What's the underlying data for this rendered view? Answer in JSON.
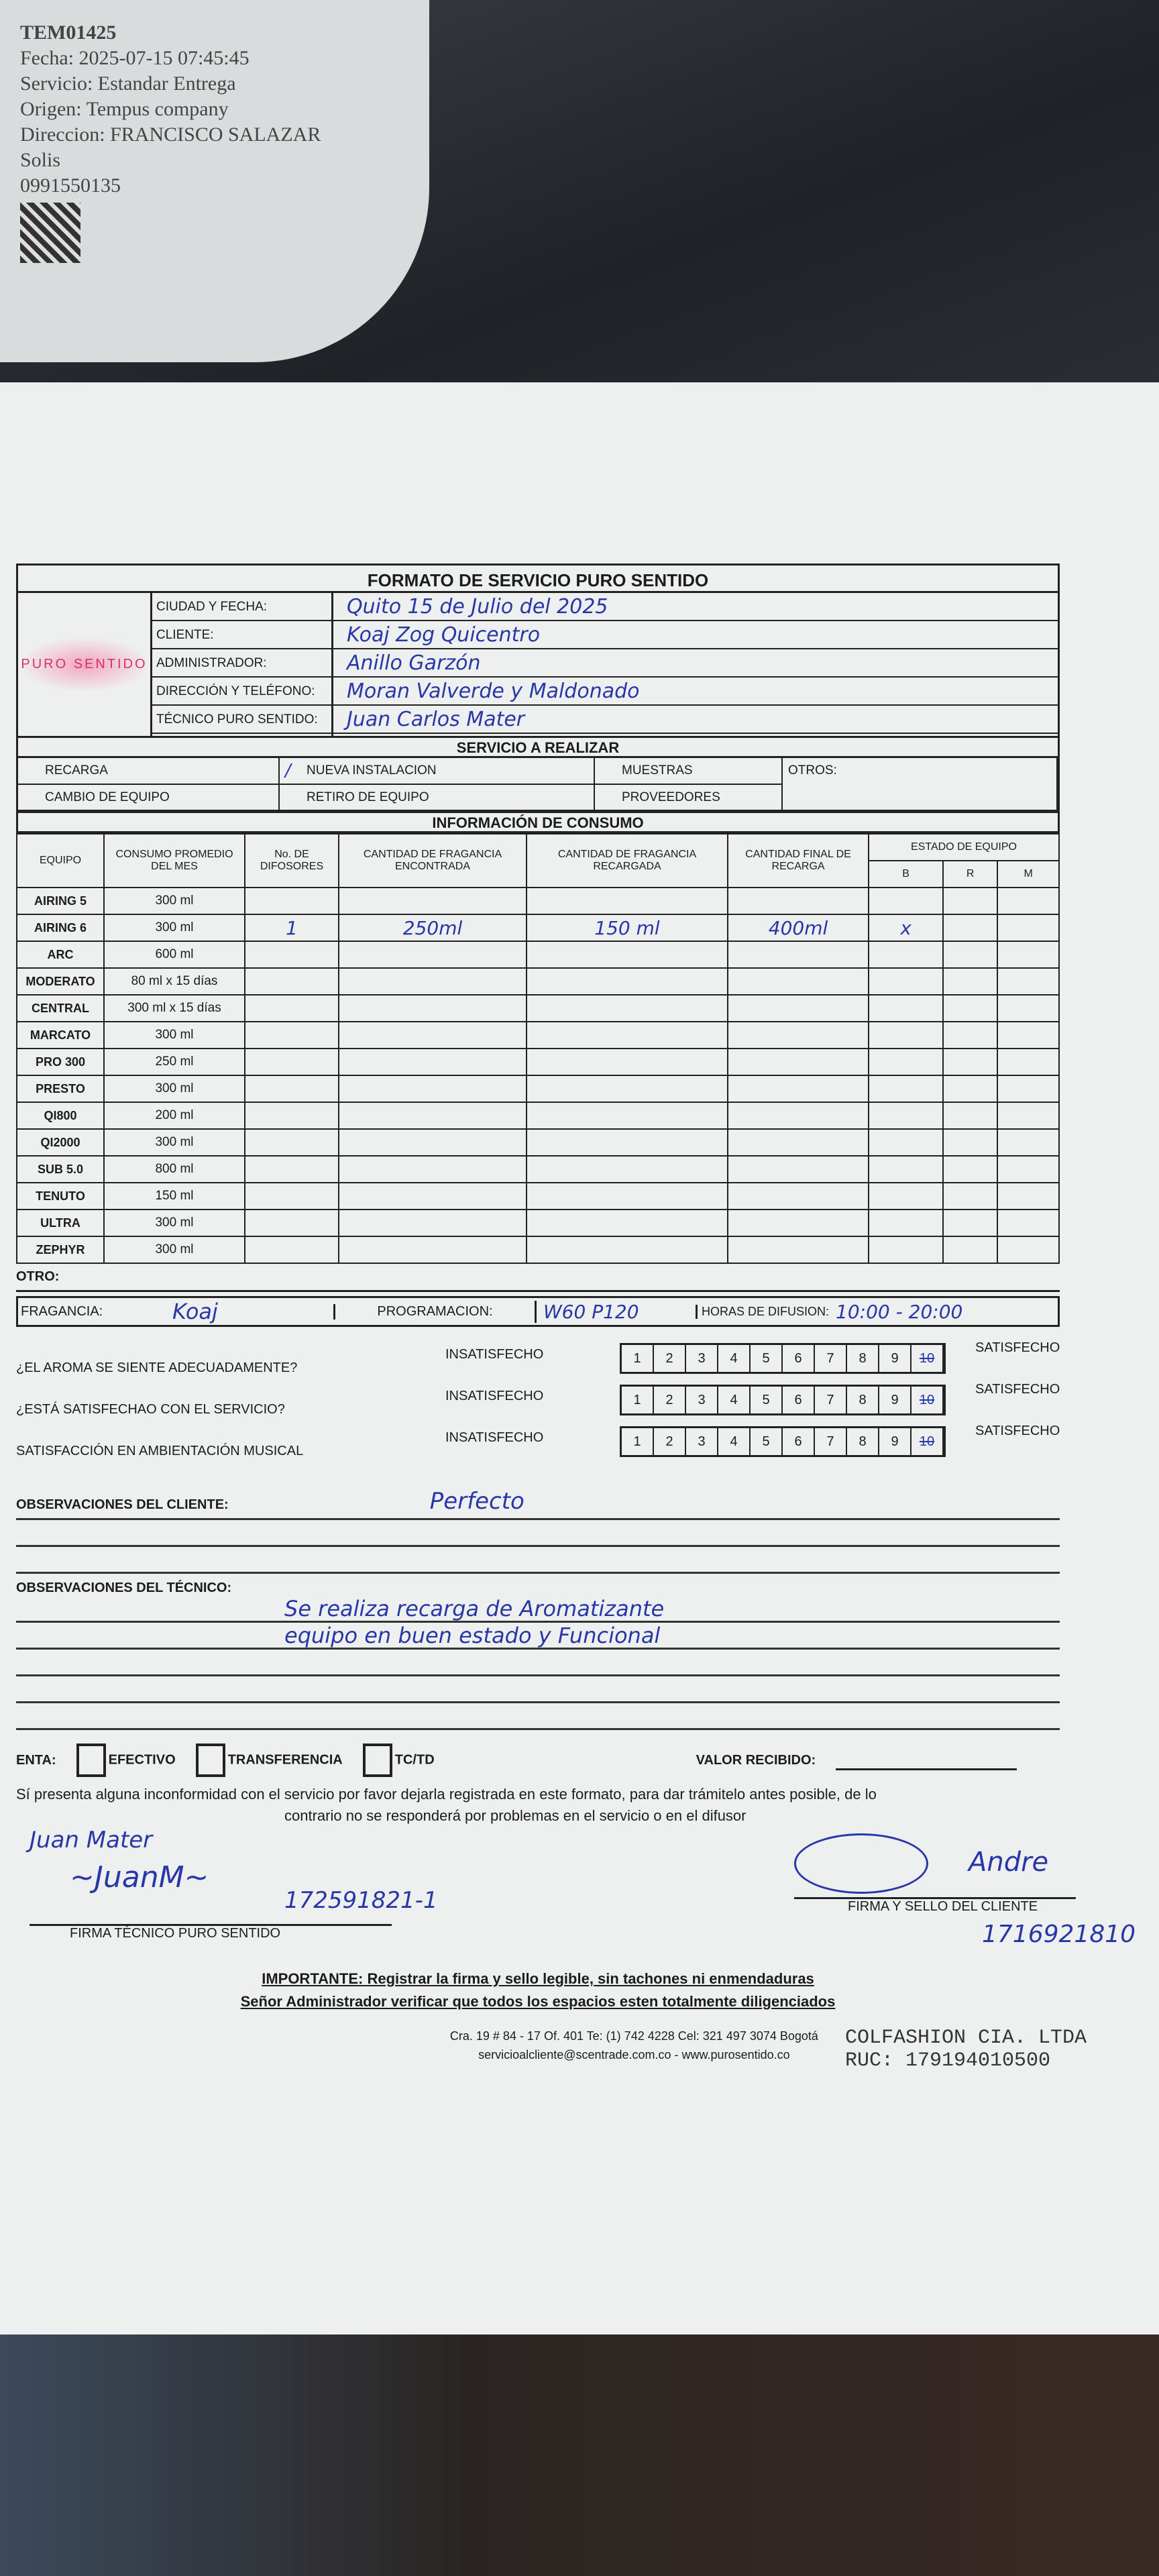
{
  "bag_label": {
    "lines": [
      "TEM01425",
      "Fecha: 2025-07-15 07:45:45",
      "Servicio: Estandar Entrega",
      "Origen: Tempus company",
      "Direccion: FRANCISCO SALAZAR",
      "Solis",
      "0991550135"
    ]
  },
  "form": {
    "title": "FORMATO DE SERVICIO PURO SENTIDO",
    "logo": "PURO SENTIDO",
    "header": [
      {
        "label": "CIUDAD Y FECHA:",
        "value": "Quito 15 de Julio del 2025"
      },
      {
        "label": "CLIENTE:",
        "value": "Koaj Zog Quicentro"
      },
      {
        "label": "ADMINISTRADOR:",
        "value": "Anillo Garzón"
      },
      {
        "label": "DIRECCIÓN Y TELÉFONO:",
        "value": "Moran Valverde y Maldonado"
      },
      {
        "label": "TÉCNICO PURO SENTIDO:",
        "value": "Juan Carlos Mater"
      }
    ],
    "service_title": "SERVICIO A REALIZAR",
    "services": {
      "recarga": "RECARGA",
      "nueva": "NUEVA INSTALACION",
      "muestras": "MUESTRAS",
      "otros": "OTROS:",
      "cambio": "CAMBIO DE EQUIPO",
      "retiro": "RETIRO DE EQUIPO",
      "proveedores": "PROVEEDORES",
      "checked_mark": "/"
    },
    "consumo_title": "INFORMACIÓN DE CONSUMO",
    "columns": [
      "EQUIPO",
      "CONSUMO PROMEDIO DEL MES",
      "No. DE DIFOSORES",
      "CANTIDAD DE FRAGANCIA ENCONTRADA",
      "CANTIDAD DE FRAGANCIA RECARGADA",
      "CANTIDAD FINAL DE RECARGA",
      "ESTADO DE EQUIPO",
      "B",
      "R",
      "M"
    ],
    "rows": [
      [
        "AIRING 5",
        "300 ml",
        "",
        "",
        "",
        "",
        "",
        "",
        ""
      ],
      [
        "AIRING 6",
        "300 ml",
        "1",
        "250ml",
        "150 ml",
        "400ml",
        "x",
        "",
        ""
      ],
      [
        "ARC",
        "600 ml",
        "",
        "",
        "",
        "",
        "",
        "",
        ""
      ],
      [
        "MODERATO",
        "80 ml x 15 días",
        "",
        "",
        "",
        "",
        "",
        "",
        ""
      ],
      [
        "CENTRAL",
        "300 ml x 15 días",
        "",
        "",
        "",
        "",
        "",
        "",
        ""
      ],
      [
        "MARCATO",
        "300 ml",
        "",
        "",
        "",
        "",
        "",
        "",
        ""
      ],
      [
        "PRO 300",
        "250 ml",
        "",
        "",
        "",
        "",
        "",
        "",
        ""
      ],
      [
        "PRESTO",
        "300 ml",
        "",
        "",
        "",
        "",
        "",
        "",
        ""
      ],
      [
        "QI800",
        "200 ml",
        "",
        "",
        "",
        "",
        "",
        "",
        ""
      ],
      [
        "QI2000",
        "300 ml",
        "",
        "",
        "",
        "",
        "",
        "",
        ""
      ],
      [
        "SUB 5.0",
        "800 ml",
        "",
        "",
        "",
        "",
        "",
        "",
        ""
      ],
      [
        "TENUTO",
        "150 ml",
        "",
        "",
        "",
        "",
        "",
        "",
        ""
      ],
      [
        "ULTRA",
        "300 ml",
        "",
        "",
        "",
        "",
        "",
        "",
        ""
      ],
      [
        "ZEPHYR",
        "300 ml",
        "",
        "",
        "",
        "",
        "",
        "",
        ""
      ]
    ],
    "otro": "OTRO:",
    "fragancia_label": "FRAGANCIA:",
    "fragancia": "Koaj",
    "programacion_label": "PROGRAMACION:",
    "programacion": "W60 P120",
    "horas_label": "HORAS DE DIFUSION:",
    "horas": "10:00 - 20:00",
    "ratings": [
      {
        "question": "¿EL AROMA SE SIENTE ADECUADAMENTE?",
        "selected": 10
      },
      {
        "question": "¿ESTÁ SATISFECHAO CON EL SERVICIO?",
        "selected": 10
      },
      {
        "question": "SATISFACCIÓN EN AMBIENTACIÓN MUSICAL",
        "selected": 10
      }
    ],
    "insatisfecho": "INSATISFECHO",
    "satisfecho": "SATISFECHO",
    "obs_cliente_label": "OBSERVACIONES DEL CLIENTE:",
    "obs_cliente": "Perfecto",
    "obs_tecnico_label": "OBSERVACIONES DEL TÉCNICO:",
    "obs_tecnico": [
      "Se realiza recarga de Aromatizante",
      "equipo en buen estado y Funcional"
    ],
    "pago_label": "ENTA:",
    "pago": [
      "EFECTIVO",
      "TRANSFERENCIA",
      "TC/TD"
    ],
    "valor_label": "VALOR RECIBIDO:",
    "notice1": "Sí presenta alguna inconformidad con el servicio por favor dejarla registrada en este formato, para dar trámitelo antes posible, de lo",
    "notice2": "contrario no se responderá por problemas en el servicio o en el difusor",
    "tec_name": "Juan Mater",
    "tec_id": "172591821-1",
    "tec_sig_label": "FIRMA TÉCNICO PURO SENTIDO",
    "cli_sig_label": "FIRMA Y SELLO DEL CLIENTE",
    "cli_id": "1716921810",
    "important_prefix": "IMPORTANTE:",
    "important": "Registrar la firma y sello legible, sin tachones ni enmendaduras",
    "important2": "Señor Administrador verificar que todos los espacios esten totalmente diligenciados",
    "address": "Cra. 19 # 84 - 17 Of. 401 Te: (1) 742 4228 Cel: 321 497 3074 Bogotá",
    "contact": "servicioalcliente@scentrade.com.co - www.purosentido.co",
    "stamp_company": "COLFASHION CIA. LTDA",
    "stamp_ruc": "RUC: 179194010500"
  },
  "colors": {
    "ink": "#2837a8",
    "logo": "#d8326a"
  }
}
